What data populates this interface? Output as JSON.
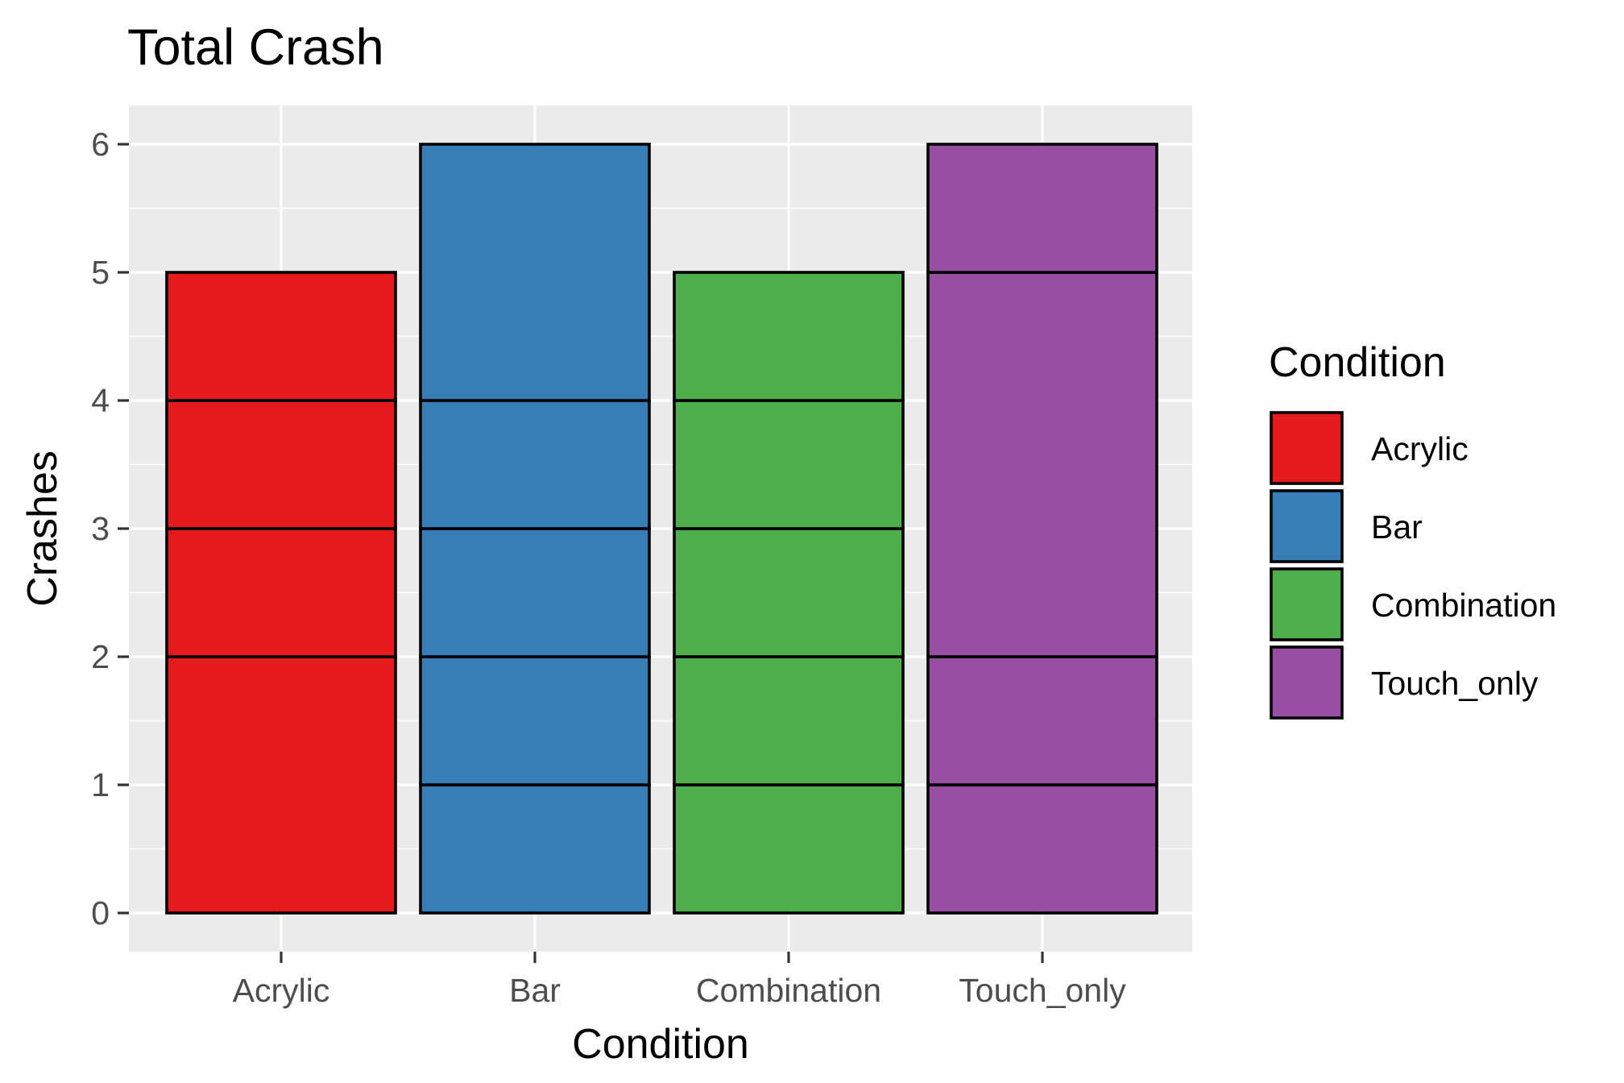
{
  "chart_data": {
    "type": "bar",
    "stacked": true,
    "title": "Total Crash",
    "xlabel": "Condition",
    "ylabel": "Crashes",
    "ylim": [
      0,
      6.3
    ],
    "yticks": [
      "0",
      "1",
      "2",
      "3",
      "4",
      "5",
      "6"
    ],
    "grid": true,
    "legend_position": "right",
    "legend_title": "Condition",
    "categories": [
      "Acrylic",
      "Bar",
      "Combination",
      "Touch_only"
    ],
    "colors": [
      "#E41A1C",
      "#377EB8",
      "#4DAF4A",
      "#984EA3"
    ],
    "values": [
      5,
      6,
      5,
      6
    ],
    "segments": [
      [
        2,
        1,
        1,
        1
      ],
      [
        1,
        1,
        1,
        1,
        2
      ],
      [
        1,
        1,
        1,
        1,
        1
      ],
      [
        1,
        1,
        3,
        1
      ]
    ]
  }
}
